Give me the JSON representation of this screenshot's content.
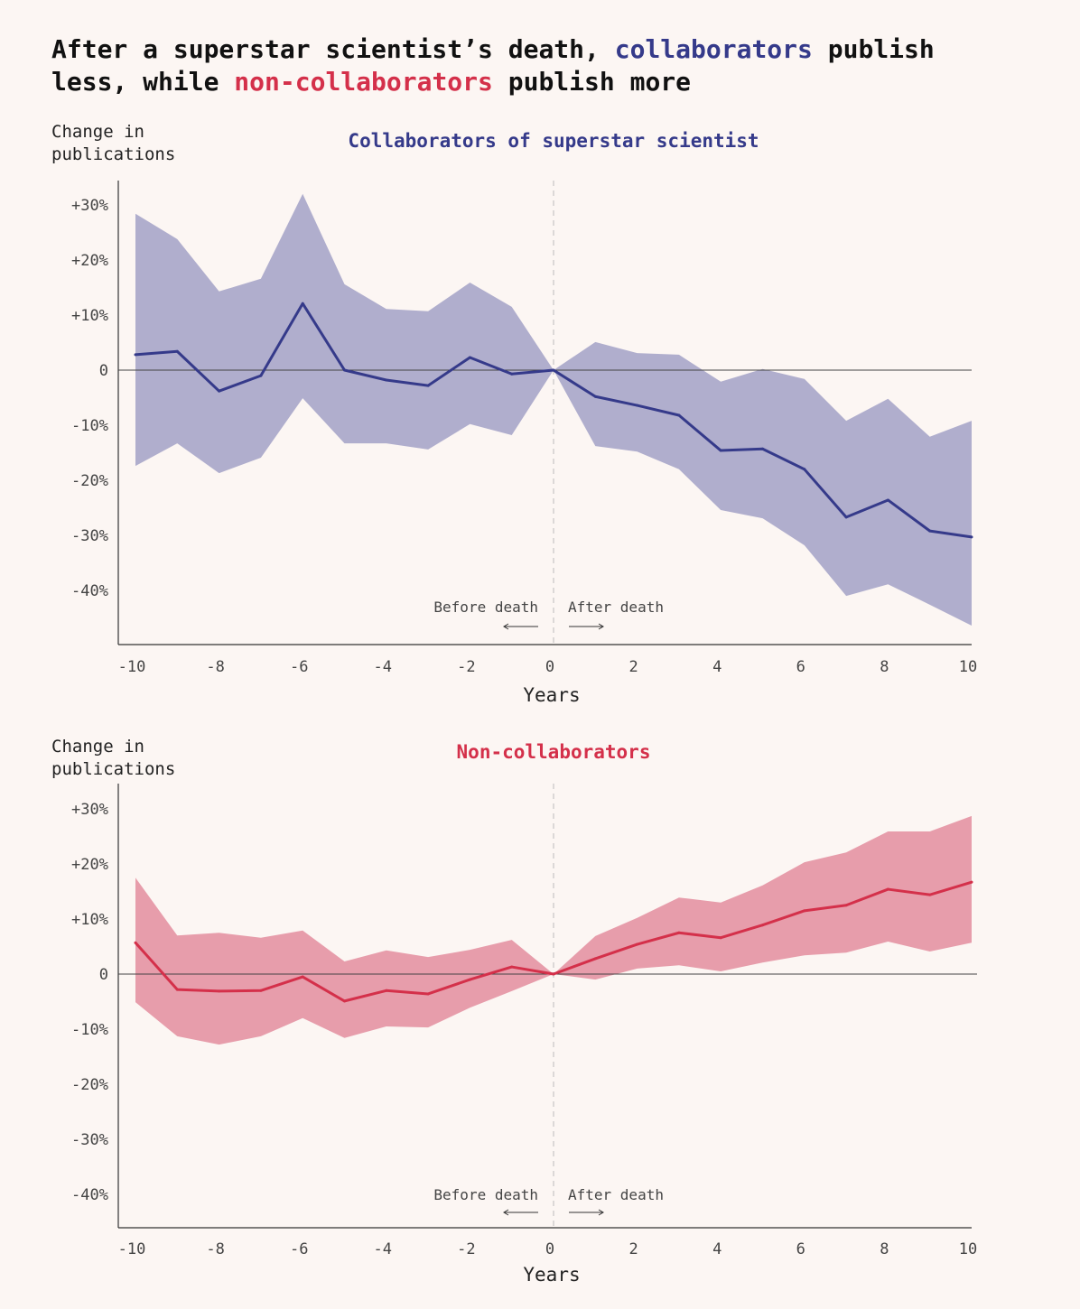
{
  "title": {
    "part1": "After a superstar scientist’s death, ",
    "highlight1": "collaborators",
    "part2": " publish",
    "part3": "less, while ",
    "highlight2": "non-collaborators",
    "part4": " publish more"
  },
  "colors": {
    "background": "#fcf6f3",
    "collaborators": "#353a8a",
    "collaborators_band": "#b0aecd",
    "non_collaborators": "#d4304a",
    "non_collaborators_band": "#e79dab"
  },
  "chart_data": [
    {
      "type": "line",
      "title": "Collaborators of superstar scientist",
      "ylabel_line1": "Change in",
      "ylabel_line2": "publications",
      "xlabel": "Years",
      "annotation_before": "Before death",
      "annotation_after": "After death",
      "x": [
        -10,
        -9,
        -8,
        -7,
        -6,
        -5,
        -4,
        -3,
        -2,
        -1,
        0,
        1,
        2,
        3,
        4,
        5,
        6,
        7,
        8,
        9,
        10
      ],
      "xticks": [
        "-10",
        "-8",
        "-6",
        "-4",
        "-2",
        "0",
        "2",
        "4",
        "6",
        "8",
        "10"
      ],
      "yticks": [
        "+30%",
        "+20%",
        "+10%",
        "0",
        "-10%",
        "-20%",
        "-30%",
        "-40%"
      ],
      "ytick_values": [
        30,
        20,
        10,
        0,
        -10,
        -20,
        -30,
        -40
      ],
      "xlim": [
        -10,
        10
      ],
      "ylim": [
        -50,
        35
      ],
      "values": [
        2.8,
        3.4,
        -3.8,
        -1,
        12.1,
        0,
        -1.8,
        -2.8,
        2.3,
        -0.7,
        0,
        -4.8,
        -6.4,
        -8.2,
        -14.6,
        -14.3,
        -18,
        -26.7,
        -23.6,
        -29.2,
        -30.3
      ],
      "upper": [
        28.4,
        23.8,
        14.3,
        16.6,
        32,
        15.6,
        11.1,
        10.7,
        15.9,
        11.5,
        0,
        5.1,
        3.1,
        2.8,
        -2.1,
        0.2,
        -1.6,
        -9.2,
        -5.2,
        -12.1,
        -9.2
      ],
      "lower": [
        -17.4,
        -13.3,
        -18.7,
        -15.9,
        -5.1,
        -13.3,
        -13.3,
        -14.4,
        -9.8,
        -11.8,
        0,
        -13.8,
        -14.8,
        -18,
        -25.4,
        -26.9,
        -31.8,
        -41,
        -38.9,
        -42.6,
        -46.4
      ]
    },
    {
      "type": "line",
      "title": "Non-collaborators",
      "ylabel_line1": "Change in",
      "ylabel_line2": "publications",
      "xlabel": "Years",
      "annotation_before": "Before death",
      "annotation_after": "After death",
      "x": [
        -10,
        -9,
        -8,
        -7,
        -6,
        -5,
        -4,
        -3,
        -2,
        -1,
        0,
        1,
        2,
        3,
        4,
        5,
        6,
        7,
        8,
        9,
        10
      ],
      "xticks": [
        "-10",
        "-8",
        "-6",
        "-4",
        "-2",
        "0",
        "2",
        "4",
        "6",
        "8",
        "10"
      ],
      "yticks": [
        "+30%",
        "+20%",
        "+10%",
        "0",
        "-10%",
        "-20%",
        "-30%",
        "-40%"
      ],
      "ytick_values": [
        30,
        20,
        10,
        0,
        -10,
        -20,
        -30,
        -40
      ],
      "xlim": [
        -10,
        10
      ],
      "ylim": [
        -46,
        35
      ],
      "values": [
        5.7,
        -2.8,
        -3.1,
        -3,
        -0.5,
        -4.9,
        -3,
        -3.6,
        -1,
        1.3,
        0,
        2.8,
        5.4,
        7.5,
        6.6,
        8.9,
        11.5,
        12.5,
        15.4,
        14.4,
        16.7
      ],
      "upper": [
        17.5,
        7,
        7.5,
        6.6,
        7.9,
        2.3,
        4.3,
        3.1,
        4.4,
        6.2,
        0,
        6.9,
        10.2,
        13.9,
        13,
        16.1,
        20.3,
        22.1,
        25.9,
        25.9,
        28.7
      ],
      "lower": [
        -5.1,
        -11.3,
        -12.8,
        -11.3,
        -8,
        -11.6,
        -9.5,
        -9.7,
        -6.1,
        -3.1,
        0,
        -1,
        1,
        1.6,
        0.5,
        2.1,
        3.4,
        3.9,
        5.9,
        4.1,
        5.7
      ]
    }
  ]
}
